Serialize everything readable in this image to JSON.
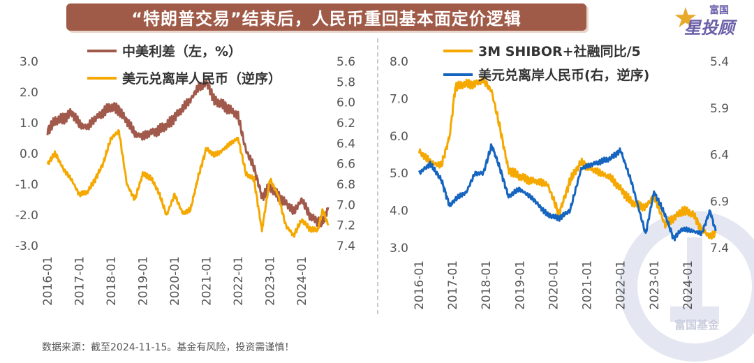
{
  "header": {
    "title": "“特朗普交易”结束后，人民币重回基本面定价逻辑"
  },
  "logo": {
    "top_text": "富国",
    "main_text": "星投顾"
  },
  "watermark": {
    "text": "富国基金"
  },
  "footer": {
    "source": "数据来源：截至2024-11-15。基金有风险，投资需谨慎！"
  },
  "colors": {
    "brown": "#a0594a",
    "gold": "#f5a800",
    "blue": "#1565c0",
    "banner": "#a05a48"
  },
  "chart_data": [
    {
      "type": "line",
      "title": "",
      "x_ticks": [
        "2016-01",
        "2017-01",
        "2018-01",
        "2019-01",
        "2020-01",
        "2021-01",
        "2022-01",
        "2023-01",
        "2024-01"
      ],
      "x_range": [
        "2016-01",
        "2024-11"
      ],
      "y_left": {
        "range": [
          -3.0,
          3.0
        ],
        "ticks": [
          "3.0",
          "2.0",
          "1.0",
          "0.0",
          "-1.0",
          "-2.0",
          "-3.0"
        ]
      },
      "y_right": {
        "range": [
          5.6,
          7.4
        ],
        "inverted": true,
        "ticks": [
          "5.6",
          "5.8",
          "6.0",
          "6.2",
          "6.4",
          "6.6",
          "6.8",
          "7.0",
          "7.2",
          "7.4"
        ]
      },
      "legend_position": "top-left",
      "series": [
        {
          "name": "中美利差（左，%）",
          "axis": "left",
          "color": "#a0594a",
          "points": [
            [
              "2016-01",
              0.75
            ],
            [
              "2016-04",
              1.05
            ],
            [
              "2016-07",
              1.15
            ],
            [
              "2016-10",
              1.35
            ],
            [
              "2017-01",
              0.95
            ],
            [
              "2017-04",
              0.85
            ],
            [
              "2017-07",
              1.15
            ],
            [
              "2017-10",
              1.35
            ],
            [
              "2018-01",
              1.5
            ],
            [
              "2018-04",
              1.45
            ],
            [
              "2018-07",
              1.05
            ],
            [
              "2018-10",
              0.65
            ],
            [
              "2019-01",
              0.55
            ],
            [
              "2019-04",
              0.7
            ],
            [
              "2019-07",
              0.75
            ],
            [
              "2019-10",
              0.9
            ],
            [
              "2020-01",
              1.2
            ],
            [
              "2020-04",
              1.45
            ],
            [
              "2020-07",
              1.75
            ],
            [
              "2020-10",
              2.15
            ],
            [
              "2021-01",
              2.3
            ],
            [
              "2021-02",
              2.2
            ],
            [
              "2021-04",
              1.7
            ],
            [
              "2021-07",
              1.6
            ],
            [
              "2021-10",
              1.45
            ],
            [
              "2022-01",
              1.2
            ],
            [
              "2022-04",
              0.1
            ],
            [
              "2022-07",
              -0.45
            ],
            [
              "2022-10",
              -1.4
            ],
            [
              "2023-01",
              -1.1
            ],
            [
              "2023-04",
              -1.35
            ],
            [
              "2023-07",
              -1.6
            ],
            [
              "2023-10",
              -1.9
            ],
            [
              "2024-01",
              -1.5
            ],
            [
              "2024-04",
              -2.0
            ],
            [
              "2024-07",
              -2.2
            ],
            [
              "2024-09",
              -2.25
            ],
            [
              "2024-11",
              -1.75
            ]
          ]
        },
        {
          "name": "美元兑离岸人民币（逆序）",
          "axis": "right",
          "color": "#f5a800",
          "points": [
            [
              "2016-01",
              6.6
            ],
            [
              "2016-04",
              6.5
            ],
            [
              "2016-07",
              6.65
            ],
            [
              "2016-10",
              6.75
            ],
            [
              "2017-01",
              6.9
            ],
            [
              "2017-04",
              6.88
            ],
            [
              "2017-07",
              6.75
            ],
            [
              "2017-10",
              6.6
            ],
            [
              "2018-01",
              6.35
            ],
            [
              "2018-04",
              6.28
            ],
            [
              "2018-07",
              6.8
            ],
            [
              "2018-10",
              6.95
            ],
            [
              "2019-01",
              6.7
            ],
            [
              "2019-04",
              6.73
            ],
            [
              "2019-07",
              6.88
            ],
            [
              "2019-10",
              7.1
            ],
            [
              "2020-01",
              6.9
            ],
            [
              "2020-04",
              7.08
            ],
            [
              "2020-07",
              7.05
            ],
            [
              "2020-10",
              6.72
            ],
            [
              "2021-01",
              6.45
            ],
            [
              "2021-04",
              6.52
            ],
            [
              "2021-07",
              6.47
            ],
            [
              "2021-10",
              6.4
            ],
            [
              "2022-01",
              6.35
            ],
            [
              "2022-04",
              6.7
            ],
            [
              "2022-07",
              6.75
            ],
            [
              "2022-10",
              7.25
            ],
            [
              "2023-01",
              6.75
            ],
            [
              "2023-04",
              6.9
            ],
            [
              "2023-07",
              7.2
            ],
            [
              "2023-10",
              7.3
            ],
            [
              "2024-01",
              7.15
            ],
            [
              "2024-04",
              7.23
            ],
            [
              "2024-07",
              7.25
            ],
            [
              "2024-09",
              7.05
            ],
            [
              "2024-11",
              7.2
            ]
          ]
        }
      ]
    },
    {
      "type": "line",
      "title": "",
      "x_ticks": [
        "2016-01",
        "2017-01",
        "2018-01",
        "2019-01",
        "2020-01",
        "2021-01",
        "2022-01",
        "2023-01",
        "2024-01"
      ],
      "x_range": [
        "2016-01",
        "2024-11"
      ],
      "y_left": {
        "range": [
          3.0,
          8.0
        ],
        "ticks": [
          "8.0",
          "7.0",
          "6.0",
          "5.0",
          "4.0",
          "3.0"
        ]
      },
      "y_right": {
        "range": [
          5.4,
          7.4
        ],
        "inverted": true,
        "ticks": [
          "5.4",
          "5.9",
          "6.4",
          "6.9",
          "7.4"
        ]
      },
      "legend_position": "top-right",
      "series": [
        {
          "name": "3M SHIBOR+社融同比/5",
          "axis": "left",
          "color": "#f5a800",
          "points": [
            [
              "2016-01",
              5.6
            ],
            [
              "2016-05",
              5.3
            ],
            [
              "2016-09",
              5.2
            ],
            [
              "2016-12",
              6.0
            ],
            [
              "2017-02",
              7.3
            ],
            [
              "2017-06",
              7.4
            ],
            [
              "2017-09",
              7.4
            ],
            [
              "2017-12",
              7.5
            ],
            [
              "2018-03",
              7.2
            ],
            [
              "2018-06",
              6.2
            ],
            [
              "2018-09",
              5.1
            ],
            [
              "2019-01",
              4.9
            ],
            [
              "2019-06",
              4.8
            ],
            [
              "2019-11",
              4.7
            ],
            [
              "2020-03",
              3.9
            ],
            [
              "2020-07",
              4.8
            ],
            [
              "2020-11",
              5.3
            ],
            [
              "2021-03",
              5.1
            ],
            [
              "2021-09",
              4.9
            ],
            [
              "2022-01",
              4.6
            ],
            [
              "2022-05",
              4.2
            ],
            [
              "2022-10",
              4.1
            ],
            [
              "2023-01",
              4.4
            ],
            [
              "2023-05",
              3.6
            ],
            [
              "2023-08",
              3.8
            ],
            [
              "2023-11",
              4.0
            ],
            [
              "2024-03",
              3.9
            ],
            [
              "2024-06",
              3.5
            ],
            [
              "2024-09",
              3.3
            ],
            [
              "2024-11",
              3.4
            ]
          ]
        },
        {
          "name": "美元兑离岸人民币(右，逆序)",
          "axis": "right",
          "color": "#1565c0",
          "points": [
            [
              "2016-01",
              6.6
            ],
            [
              "2016-05",
              6.5
            ],
            [
              "2016-09",
              6.67
            ],
            [
              "2016-12",
              6.95
            ],
            [
              "2017-02",
              6.88
            ],
            [
              "2017-06",
              6.8
            ],
            [
              "2017-09",
              6.6
            ],
            [
              "2017-12",
              6.6
            ],
            [
              "2018-03",
              6.3
            ],
            [
              "2018-06",
              6.55
            ],
            [
              "2018-09",
              6.85
            ],
            [
              "2019-01",
              6.77
            ],
            [
              "2019-06",
              6.88
            ],
            [
              "2019-11",
              7.05
            ],
            [
              "2020-03",
              7.08
            ],
            [
              "2020-07",
              7.0
            ],
            [
              "2020-11",
              6.55
            ],
            [
              "2021-03",
              6.5
            ],
            [
              "2021-09",
              6.45
            ],
            [
              "2022-01",
              6.35
            ],
            [
              "2022-05",
              6.7
            ],
            [
              "2022-10",
              7.25
            ],
            [
              "2023-01",
              6.8
            ],
            [
              "2023-05",
              7.05
            ],
            [
              "2023-08",
              7.3
            ],
            [
              "2023-11",
              7.2
            ],
            [
              "2024-03",
              7.22
            ],
            [
              "2024-06",
              7.25
            ],
            [
              "2024-09",
              7.0
            ],
            [
              "2024-11",
              7.22
            ]
          ]
        }
      ]
    }
  ]
}
